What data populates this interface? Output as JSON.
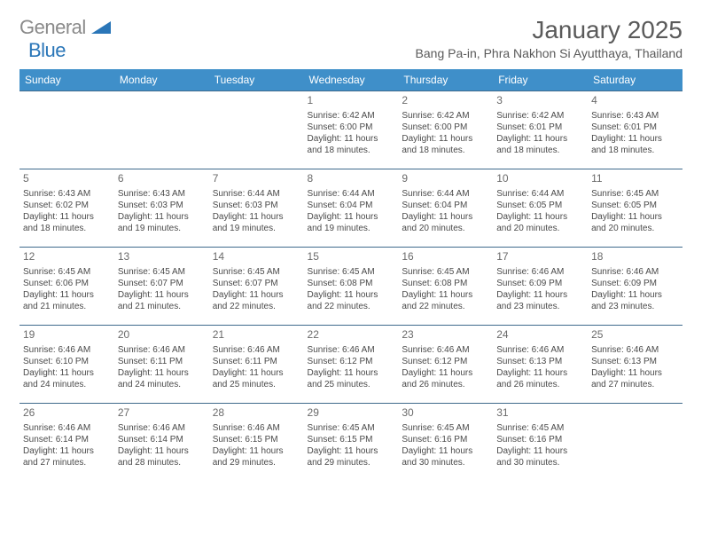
{
  "brand": {
    "part1": "General",
    "part2": "Blue"
  },
  "title": "January 2025",
  "location": "Bang Pa-in, Phra Nakhon Si Ayutthaya, Thailand",
  "weekdays": [
    "Sunday",
    "Monday",
    "Tuesday",
    "Wednesday",
    "Thursday",
    "Friday",
    "Saturday"
  ],
  "colors": {
    "header_bg": "#3f8fc9",
    "border": "#3f6a8c"
  },
  "weeks": [
    [
      null,
      null,
      null,
      {
        "n": "1",
        "sr": "Sunrise: 6:42 AM",
        "ss": "Sunset: 6:00 PM",
        "dl": "Daylight: 11 hours and 18 minutes."
      },
      {
        "n": "2",
        "sr": "Sunrise: 6:42 AM",
        "ss": "Sunset: 6:00 PM",
        "dl": "Daylight: 11 hours and 18 minutes."
      },
      {
        "n": "3",
        "sr": "Sunrise: 6:42 AM",
        "ss": "Sunset: 6:01 PM",
        "dl": "Daylight: 11 hours and 18 minutes."
      },
      {
        "n": "4",
        "sr": "Sunrise: 6:43 AM",
        "ss": "Sunset: 6:01 PM",
        "dl": "Daylight: 11 hours and 18 minutes."
      }
    ],
    [
      {
        "n": "5",
        "sr": "Sunrise: 6:43 AM",
        "ss": "Sunset: 6:02 PM",
        "dl": "Daylight: 11 hours and 18 minutes."
      },
      {
        "n": "6",
        "sr": "Sunrise: 6:43 AM",
        "ss": "Sunset: 6:03 PM",
        "dl": "Daylight: 11 hours and 19 minutes."
      },
      {
        "n": "7",
        "sr": "Sunrise: 6:44 AM",
        "ss": "Sunset: 6:03 PM",
        "dl": "Daylight: 11 hours and 19 minutes."
      },
      {
        "n": "8",
        "sr": "Sunrise: 6:44 AM",
        "ss": "Sunset: 6:04 PM",
        "dl": "Daylight: 11 hours and 19 minutes."
      },
      {
        "n": "9",
        "sr": "Sunrise: 6:44 AM",
        "ss": "Sunset: 6:04 PM",
        "dl": "Daylight: 11 hours and 20 minutes."
      },
      {
        "n": "10",
        "sr": "Sunrise: 6:44 AM",
        "ss": "Sunset: 6:05 PM",
        "dl": "Daylight: 11 hours and 20 minutes."
      },
      {
        "n": "11",
        "sr": "Sunrise: 6:45 AM",
        "ss": "Sunset: 6:05 PM",
        "dl": "Daylight: 11 hours and 20 minutes."
      }
    ],
    [
      {
        "n": "12",
        "sr": "Sunrise: 6:45 AM",
        "ss": "Sunset: 6:06 PM",
        "dl": "Daylight: 11 hours and 21 minutes."
      },
      {
        "n": "13",
        "sr": "Sunrise: 6:45 AM",
        "ss": "Sunset: 6:07 PM",
        "dl": "Daylight: 11 hours and 21 minutes."
      },
      {
        "n": "14",
        "sr": "Sunrise: 6:45 AM",
        "ss": "Sunset: 6:07 PM",
        "dl": "Daylight: 11 hours and 22 minutes."
      },
      {
        "n": "15",
        "sr": "Sunrise: 6:45 AM",
        "ss": "Sunset: 6:08 PM",
        "dl": "Daylight: 11 hours and 22 minutes."
      },
      {
        "n": "16",
        "sr": "Sunrise: 6:45 AM",
        "ss": "Sunset: 6:08 PM",
        "dl": "Daylight: 11 hours and 22 minutes."
      },
      {
        "n": "17",
        "sr": "Sunrise: 6:46 AM",
        "ss": "Sunset: 6:09 PM",
        "dl": "Daylight: 11 hours and 23 minutes."
      },
      {
        "n": "18",
        "sr": "Sunrise: 6:46 AM",
        "ss": "Sunset: 6:09 PM",
        "dl": "Daylight: 11 hours and 23 minutes."
      }
    ],
    [
      {
        "n": "19",
        "sr": "Sunrise: 6:46 AM",
        "ss": "Sunset: 6:10 PM",
        "dl": "Daylight: 11 hours and 24 minutes."
      },
      {
        "n": "20",
        "sr": "Sunrise: 6:46 AM",
        "ss": "Sunset: 6:11 PM",
        "dl": "Daylight: 11 hours and 24 minutes."
      },
      {
        "n": "21",
        "sr": "Sunrise: 6:46 AM",
        "ss": "Sunset: 6:11 PM",
        "dl": "Daylight: 11 hours and 25 minutes."
      },
      {
        "n": "22",
        "sr": "Sunrise: 6:46 AM",
        "ss": "Sunset: 6:12 PM",
        "dl": "Daylight: 11 hours and 25 minutes."
      },
      {
        "n": "23",
        "sr": "Sunrise: 6:46 AM",
        "ss": "Sunset: 6:12 PM",
        "dl": "Daylight: 11 hours and 26 minutes."
      },
      {
        "n": "24",
        "sr": "Sunrise: 6:46 AM",
        "ss": "Sunset: 6:13 PM",
        "dl": "Daylight: 11 hours and 26 minutes."
      },
      {
        "n": "25",
        "sr": "Sunrise: 6:46 AM",
        "ss": "Sunset: 6:13 PM",
        "dl": "Daylight: 11 hours and 27 minutes."
      }
    ],
    [
      {
        "n": "26",
        "sr": "Sunrise: 6:46 AM",
        "ss": "Sunset: 6:14 PM",
        "dl": "Daylight: 11 hours and 27 minutes."
      },
      {
        "n": "27",
        "sr": "Sunrise: 6:46 AM",
        "ss": "Sunset: 6:14 PM",
        "dl": "Daylight: 11 hours and 28 minutes."
      },
      {
        "n": "28",
        "sr": "Sunrise: 6:46 AM",
        "ss": "Sunset: 6:15 PM",
        "dl": "Daylight: 11 hours and 29 minutes."
      },
      {
        "n": "29",
        "sr": "Sunrise: 6:45 AM",
        "ss": "Sunset: 6:15 PM",
        "dl": "Daylight: 11 hours and 29 minutes."
      },
      {
        "n": "30",
        "sr": "Sunrise: 6:45 AM",
        "ss": "Sunset: 6:16 PM",
        "dl": "Daylight: 11 hours and 30 minutes."
      },
      {
        "n": "31",
        "sr": "Sunrise: 6:45 AM",
        "ss": "Sunset: 6:16 PM",
        "dl": "Daylight: 11 hours and 30 minutes."
      },
      null
    ]
  ]
}
